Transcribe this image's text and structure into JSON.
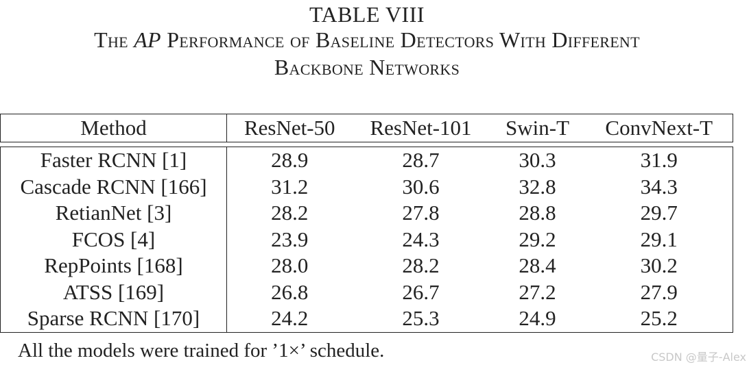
{
  "table": {
    "number": "TABLE VIII",
    "caption_pre": "The ",
    "caption_em": "AP",
    "caption_post": " Performance of Baseline Detectors With Different",
    "caption_line2": "Backbone Networks",
    "columns": [
      "Method",
      "ResNet-50",
      "ResNet-101",
      "Swin-T",
      "ConvNext-T"
    ],
    "rows": [
      {
        "method": "Faster RCNN [1]",
        "values": [
          "28.9",
          "28.7",
          "30.3",
          "31.9"
        ]
      },
      {
        "method": "Cascade RCNN [166]",
        "values": [
          "31.2",
          "30.6",
          "32.8",
          "34.3"
        ]
      },
      {
        "method": "RetianNet [3]",
        "values": [
          "28.2",
          "27.8",
          "28.8",
          "29.7"
        ]
      },
      {
        "method": "FCOS [4]",
        "values": [
          "23.9",
          "24.3",
          "29.2",
          "29.1"
        ]
      },
      {
        "method": "RepPoints [168]",
        "values": [
          "28.0",
          "28.2",
          "28.4",
          "30.2"
        ]
      },
      {
        "method": "ATSS [169]",
        "values": [
          "26.8",
          "26.7",
          "27.2",
          "27.9"
        ]
      },
      {
        "method": "Sparse RCNN [170]",
        "values": [
          "24.2",
          "25.3",
          "24.9",
          "25.2"
        ]
      }
    ],
    "note": "All the models were trained for ’1×’ schedule."
  },
  "watermark": "CSDN @量子-Alex"
}
